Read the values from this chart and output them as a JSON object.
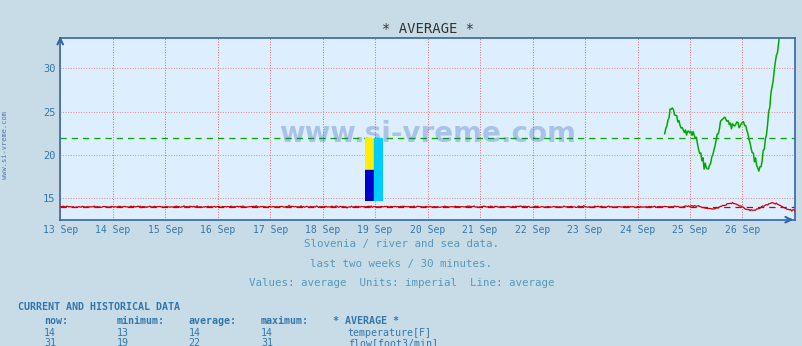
{
  "title": "* AVERAGE *",
  "bg_color": "#c8dce8",
  "plot_bg_color": "#ddeeff",
  "x_tick_labels": [
    "13 Sep",
    "14 Sep",
    "15 Sep",
    "16 Sep",
    "17 Sep",
    "18 Sep",
    "19 Sep",
    "20 Sep",
    "21 Sep",
    "22 Sep",
    "23 Sep",
    "24 Sep",
    "25 Sep",
    "26 Sep"
  ],
  "ylim": [
    12.5,
    33.5
  ],
  "yticks": [
    15,
    20,
    25,
    30
  ],
  "temp_avg_line": 14.0,
  "flow_avg_line": 22.0,
  "subtitle1": "Slovenia / river and sea data.",
  "subtitle2": "last two weeks / 30 minutes.",
  "subtitle3": "Values: average  Units: imperial  Line: average",
  "subtitle_color": "#5599bb",
  "watermark": "www.si-vreme.com",
  "watermark_color": "#2255aa",
  "table_header": "CURRENT AND HISTORICAL DATA",
  "table_cols": [
    "now:",
    "minimum:",
    "average:",
    "maximum:",
    "* AVERAGE *"
  ],
  "temp_row": [
    "14",
    "13",
    "14",
    "14",
    "temperature[F]"
  ],
  "flow_row": [
    "31",
    "19",
    "22",
    "31",
    "flow[foot3/min]"
  ],
  "temp_color": "#cc0000",
  "flow_color": "#00aa00",
  "axis_color": "#3377aa",
  "tick_color": "#3377aa",
  "grid_v_color": "#dd6666",
  "grid_h_color": "#dd8888",
  "spine_color": "#3366aa"
}
